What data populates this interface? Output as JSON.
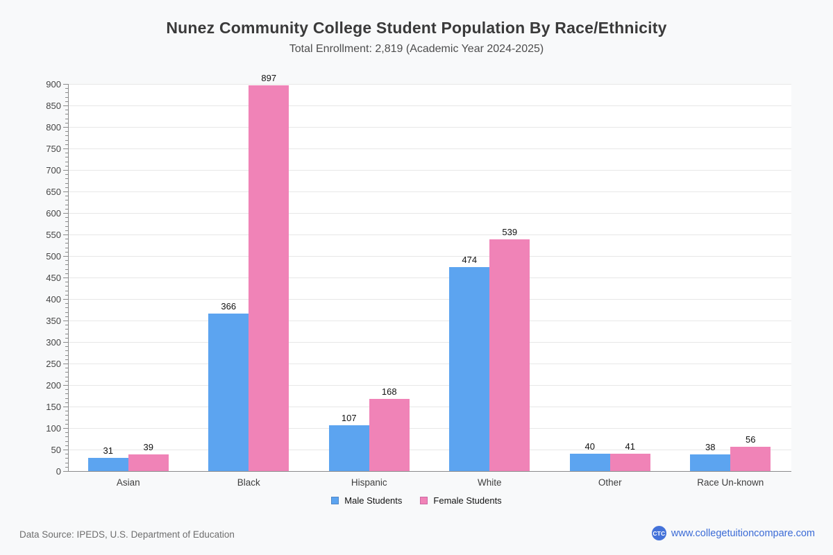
{
  "page": {
    "title": "Nunez Community College Student Population By Race/Ethnicity",
    "subtitle": "Total Enrollment: 2,819 (Academic Year 2024-2025)",
    "background": "#f8f9fa"
  },
  "chart_data": {
    "type": "bar",
    "title": "Nunez Community College Student Population By Race/Ethnicity",
    "subtitle": "Total Enrollment: 2,819 (Academic Year 2024-2025)",
    "categories": [
      "Asian",
      "Black",
      "Hispanic",
      "White",
      "Other",
      "Race Un-known"
    ],
    "series": [
      {
        "name": "Male Students",
        "color": "#5ca4f0",
        "border_color": "#4f87c7",
        "values": [
          31,
          366,
          107,
          474,
          40,
          38
        ]
      },
      {
        "name": "Female Students",
        "color": "#f083b7",
        "border_color": "#cc66a3",
        "values": [
          39,
          897,
          168,
          539,
          41,
          56
        ]
      }
    ],
    "xlabel": "",
    "ylabel": "",
    "ylim": [
      0,
      900
    ],
    "ytick_step": 50,
    "minor_tick_step": 10,
    "grid": true,
    "grid_color": "#e7e7e7",
    "axis_color": "#8a8a8a",
    "plot_background": "#ffffff",
    "value_labels": true,
    "legend_position": "bottom"
  },
  "footer": {
    "data_source": "Data Source: IPEDS, U.S. Department of Education",
    "logo_text": "CTC",
    "logo_color": "#4472d9",
    "website": "www.collegetuitioncompare.com",
    "website_color": "#3b6bd6"
  }
}
